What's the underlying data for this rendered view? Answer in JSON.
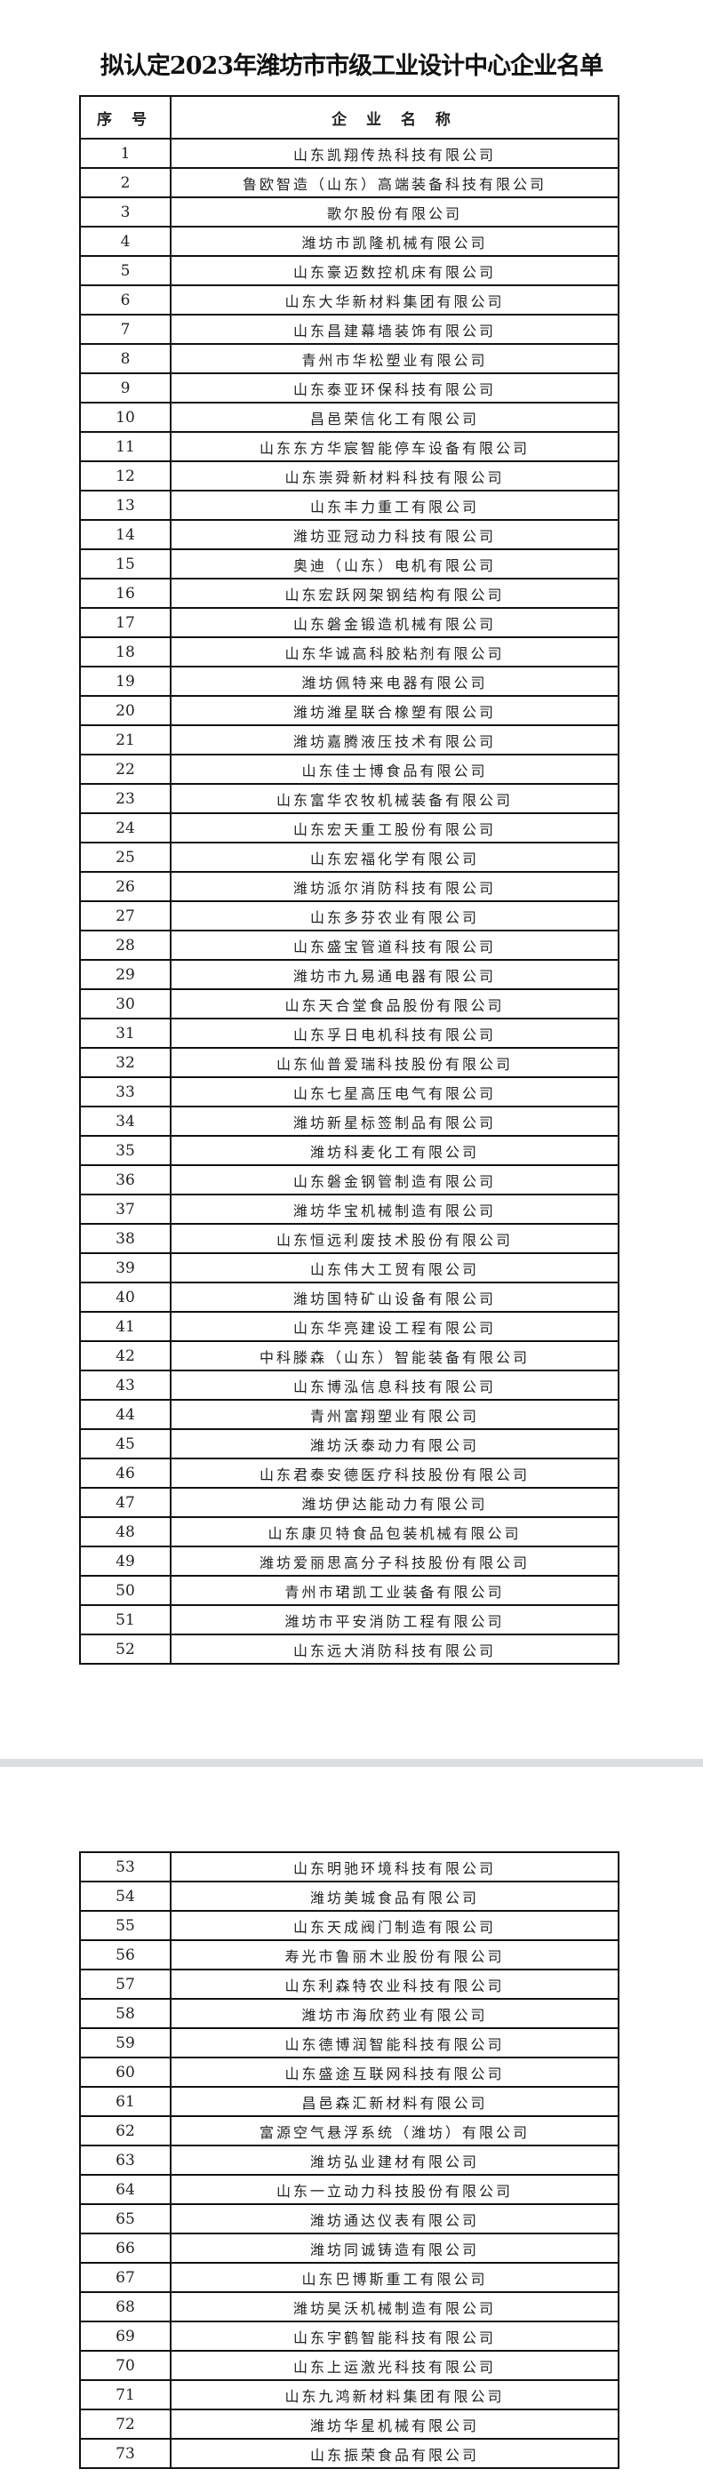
{
  "title": "拟认定2023年潍坊市市级工业设计中心企业名单",
  "headers": {
    "index": "序 号",
    "name": "企 业 名 称"
  },
  "page1_rows": [
    {
      "no": "1",
      "name": "山东凯翔传热科技有限公司"
    },
    {
      "no": "2",
      "name": "鲁欧智造（山东）高端装备科技有限公司"
    },
    {
      "no": "3",
      "name": "歌尔股份有限公司"
    },
    {
      "no": "4",
      "name": "潍坊市凯隆机械有限公司"
    },
    {
      "no": "5",
      "name": "山东豪迈数控机床有限公司"
    },
    {
      "no": "6",
      "name": "山东大华新材料集团有限公司"
    },
    {
      "no": "7",
      "name": "山东昌建幕墙装饰有限公司"
    },
    {
      "no": "8",
      "name": "青州市华松塑业有限公司"
    },
    {
      "no": "9",
      "name": "山东泰亚环保科技有限公司"
    },
    {
      "no": "10",
      "name": "昌邑荣信化工有限公司"
    },
    {
      "no": "11",
      "name": "山东东方华宸智能停车设备有限公司"
    },
    {
      "no": "12",
      "name": "山东崇舜新材料科技有限公司"
    },
    {
      "no": "13",
      "name": "山东丰力重工有限公司"
    },
    {
      "no": "14",
      "name": "潍坊亚冠动力科技有限公司"
    },
    {
      "no": "15",
      "name": "奥迪（山东）电机有限公司"
    },
    {
      "no": "16",
      "name": "山东宏跃网架钢结构有限公司"
    },
    {
      "no": "17",
      "name": "山东磐金锻造机械有限公司"
    },
    {
      "no": "18",
      "name": "山东华诚高科胶粘剂有限公司"
    },
    {
      "no": "19",
      "name": "潍坊佩特来电器有限公司"
    },
    {
      "no": "20",
      "name": "潍坊潍星联合橡塑有限公司"
    },
    {
      "no": "21",
      "name": "潍坊嘉腾液压技术有限公司"
    },
    {
      "no": "22",
      "name": "山东佳士博食品有限公司"
    },
    {
      "no": "23",
      "name": "山东富华农牧机械装备有限公司"
    },
    {
      "no": "24",
      "name": "山东宏天重工股份有限公司"
    },
    {
      "no": "25",
      "name": "山东宏福化学有限公司"
    },
    {
      "no": "26",
      "name": "潍坊派尔消防科技有限公司"
    },
    {
      "no": "27",
      "name": "山东多芬农业有限公司"
    },
    {
      "no": "28",
      "name": "山东盛宝管道科技有限公司"
    },
    {
      "no": "29",
      "name": "潍坊市九易通电器有限公司"
    },
    {
      "no": "30",
      "name": "山东天合堂食品股份有限公司"
    },
    {
      "no": "31",
      "name": "山东孚日电机科技有限公司"
    },
    {
      "no": "32",
      "name": "山东仙普爱瑞科技股份有限公司"
    },
    {
      "no": "33",
      "name": "山东七星高压电气有限公司"
    },
    {
      "no": "34",
      "name": "潍坊新星标签制品有限公司"
    },
    {
      "no": "35",
      "name": "潍坊科麦化工有限公司"
    },
    {
      "no": "36",
      "name": "山东磐金钢管制造有限公司"
    },
    {
      "no": "37",
      "name": "潍坊华宝机械制造有限公司"
    },
    {
      "no": "38",
      "name": "山东恒远利废技术股份有限公司"
    },
    {
      "no": "39",
      "name": "山东伟大工贸有限公司"
    },
    {
      "no": "40",
      "name": "潍坊国特矿山设备有限公司"
    },
    {
      "no": "41",
      "name": "山东华亮建设工程有限公司"
    },
    {
      "no": "42",
      "name": "中科滕森（山东）智能装备有限公司"
    },
    {
      "no": "43",
      "name": "山东博泓信息科技有限公司"
    },
    {
      "no": "44",
      "name": "青州富翔塑业有限公司"
    },
    {
      "no": "45",
      "name": "潍坊沃泰动力有限公司"
    },
    {
      "no": "46",
      "name": "山东君泰安德医疗科技股份有限公司"
    },
    {
      "no": "47",
      "name": "潍坊伊达能动力有限公司"
    },
    {
      "no": "48",
      "name": "山东康贝特食品包装机械有限公司"
    },
    {
      "no": "49",
      "name": "潍坊爱丽思高分子科技股份有限公司"
    },
    {
      "no": "50",
      "name": "青州市珺凯工业装备有限公司"
    },
    {
      "no": "51",
      "name": "潍坊市平安消防工程有限公司"
    },
    {
      "no": "52",
      "name": "山东远大消防科技有限公司"
    }
  ],
  "page2_rows": [
    {
      "no": "53",
      "name": "山东明驰环境科技有限公司"
    },
    {
      "no": "54",
      "name": "潍坊美城食品有限公司"
    },
    {
      "no": "55",
      "name": "山东天成阀门制造有限公司"
    },
    {
      "no": "56",
      "name": "寿光市鲁丽木业股份有限公司"
    },
    {
      "no": "57",
      "name": "山东利森特农业科技有限公司"
    },
    {
      "no": "58",
      "name": "潍坊市海欣药业有限公司"
    },
    {
      "no": "59",
      "name": "山东德博润智能科技有限公司"
    },
    {
      "no": "60",
      "name": "山东盛途互联网科技有限公司"
    },
    {
      "no": "61",
      "name": "昌邑森汇新材料有限公司"
    },
    {
      "no": "62",
      "name": "富源空气悬浮系统（潍坊）有限公司"
    },
    {
      "no": "63",
      "name": "潍坊弘业建材有限公司"
    },
    {
      "no": "64",
      "name": "山东一立动力科技股份有限公司"
    },
    {
      "no": "65",
      "name": "潍坊通达仪表有限公司"
    },
    {
      "no": "66",
      "name": "潍坊同诚铸造有限公司"
    },
    {
      "no": "67",
      "name": "山东巴博斯重工有限公司"
    },
    {
      "no": "68",
      "name": "潍坊昊沃机械制造有限公司"
    },
    {
      "no": "69",
      "name": "山东宇鹤智能科技有限公司"
    },
    {
      "no": "70",
      "name": "山东上运激光科技有限公司"
    },
    {
      "no": "71",
      "name": "山东九鸿新材料集团有限公司"
    },
    {
      "no": "72",
      "name": "潍坊华星机械有限公司"
    },
    {
      "no": "73",
      "name": "山东振荣食品有限公司"
    }
  ]
}
